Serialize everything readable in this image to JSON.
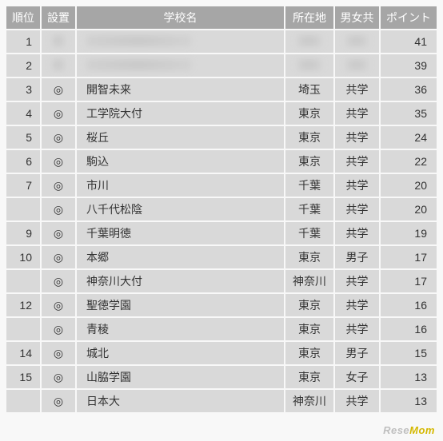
{
  "columns": {
    "rank": "順位",
    "setup": "設置",
    "name": "学校名",
    "loc": "所在地",
    "gender": "男女共",
    "points": "ポイント"
  },
  "colors": {
    "header_bg": "#a6a6a6",
    "header_fg": "#ffffff",
    "cell_bg": "#d9d9d9",
    "cell_fg": "#333333",
    "page_bg": "#f8f8f8"
  },
  "rows": [
    {
      "rank": "1",
      "setup": "",
      "name": "",
      "loc": "",
      "gender": "",
      "points": "41",
      "obscured": true
    },
    {
      "rank": "2",
      "setup": "",
      "name": "",
      "loc": "",
      "gender": "",
      "points": "39",
      "obscured": true
    },
    {
      "rank": "3",
      "setup": "◎",
      "name": "開智未来",
      "loc": "埼玉",
      "gender": "共学",
      "points": "36",
      "obscured": false
    },
    {
      "rank": "4",
      "setup": "◎",
      "name": "工学院大付",
      "loc": "東京",
      "gender": "共学",
      "points": "35",
      "obscured": false
    },
    {
      "rank": "5",
      "setup": "◎",
      "name": "桜丘",
      "loc": "東京",
      "gender": "共学",
      "points": "24",
      "obscured": false
    },
    {
      "rank": "6",
      "setup": "◎",
      "name": "駒込",
      "loc": "東京",
      "gender": "共学",
      "points": "22",
      "obscured": false
    },
    {
      "rank": "7",
      "setup": "◎",
      "name": "市川",
      "loc": "千葉",
      "gender": "共学",
      "points": "20",
      "obscured": false
    },
    {
      "rank": "",
      "setup": "◎",
      "name": "八千代松陰",
      "loc": "千葉",
      "gender": "共学",
      "points": "20",
      "obscured": false
    },
    {
      "rank": "9",
      "setup": "◎",
      "name": "千葉明徳",
      "loc": "千葉",
      "gender": "共学",
      "points": "19",
      "obscured": false
    },
    {
      "rank": "10",
      "setup": "◎",
      "name": "本郷",
      "loc": "東京",
      "gender": "男子",
      "points": "17",
      "obscured": false
    },
    {
      "rank": "",
      "setup": "◎",
      "name": "神奈川大付",
      "loc": "神奈川",
      "gender": "共学",
      "points": "17",
      "obscured": false
    },
    {
      "rank": "12",
      "setup": "◎",
      "name": "聖徳学園",
      "loc": "東京",
      "gender": "共学",
      "points": "16",
      "obscured": false
    },
    {
      "rank": "",
      "setup": "◎",
      "name": "青稜",
      "loc": "東京",
      "gender": "共学",
      "points": "16",
      "obscured": false
    },
    {
      "rank": "14",
      "setup": "◎",
      "name": "城北",
      "loc": "東京",
      "gender": "男子",
      "points": "15",
      "obscured": false
    },
    {
      "rank": "15",
      "setup": "◎",
      "name": "山脇学園",
      "loc": "東京",
      "gender": "女子",
      "points": "13",
      "obscured": false
    },
    {
      "rank": "",
      "setup": "◎",
      "name": "日本大",
      "loc": "神奈川",
      "gender": "共学",
      "points": "13",
      "obscured": false
    }
  ],
  "watermark": {
    "part1": "Rese",
    "part2": "Mom"
  }
}
